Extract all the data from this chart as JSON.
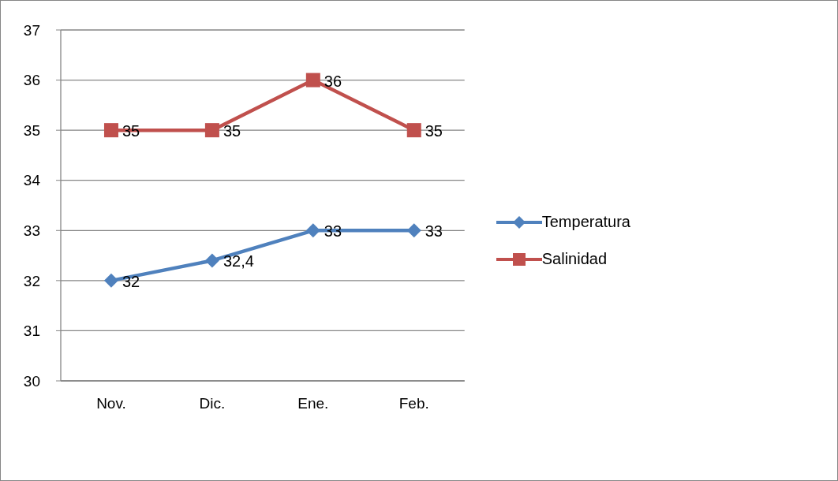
{
  "chart_data": {
    "type": "line",
    "categories": [
      "Nov.",
      "Dic.",
      "Ene.",
      "Feb."
    ],
    "series": [
      {
        "name": "Temperatura",
        "color": "#4f81bd",
        "marker": "diamond",
        "values": [
          32,
          32.4,
          33,
          33
        ],
        "value_labels": [
          "32",
          "32,4",
          "33",
          "33"
        ]
      },
      {
        "name": "Salinidad",
        "color": "#c0504d",
        "marker": "square",
        "values": [
          35,
          35,
          36,
          35
        ],
        "value_labels": [
          "35",
          "35",
          "36",
          "35"
        ]
      }
    ],
    "ylim": [
      30,
      37
    ],
    "yticks": [
      30,
      31,
      32,
      33,
      34,
      35,
      36,
      37
    ],
    "grid": "y",
    "legend": "right",
    "line_style": "solid"
  }
}
